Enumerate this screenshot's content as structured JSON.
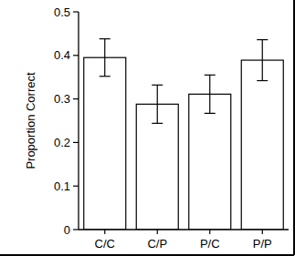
{
  "chart_data": {
    "type": "bar",
    "y_label": "Proportion Correct",
    "categories": [
      "C/C",
      "C/P",
      "P/C",
      "P/P"
    ],
    "values": [
      0.395,
      0.288,
      0.311,
      0.389
    ],
    "errors": [
      0.043,
      0.044,
      0.044,
      0.047
    ],
    "color": "#ffffff",
    "ylim": [
      0,
      0.5
    ],
    "yticks": [
      0,
      0.1,
      0.2,
      0.3,
      0.4,
      0.5
    ],
    "grid": false
  }
}
